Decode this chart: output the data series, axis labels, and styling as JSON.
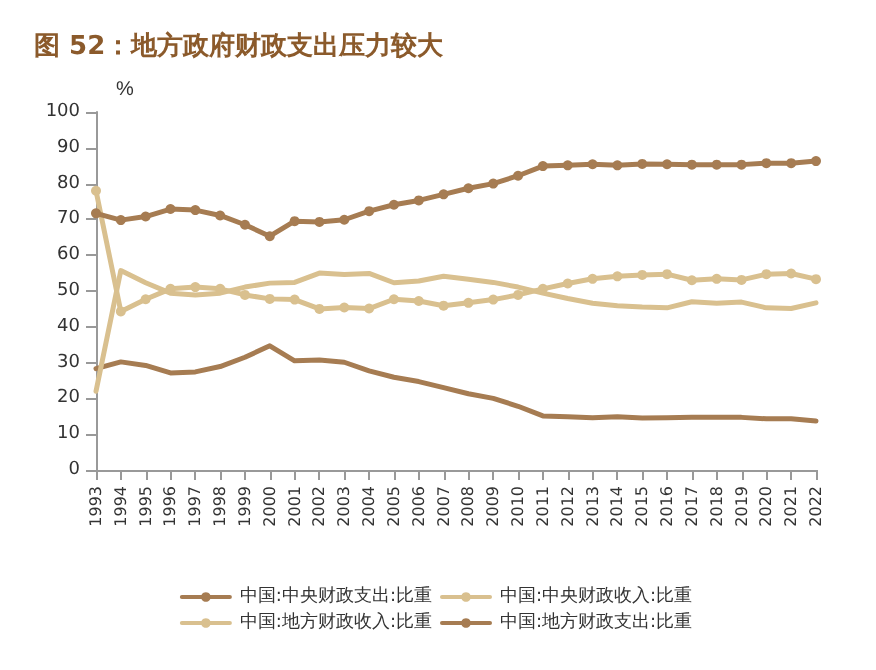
{
  "chart_data": {
    "type": "line",
    "title": "图 52：地方政府财政支出压力较大",
    "ylabel": "%",
    "categories": [
      "1993",
      "1994",
      "1995",
      "1996",
      "1997",
      "1998",
      "1999",
      "2000",
      "2001",
      "2002",
      "2003",
      "2004",
      "2005",
      "2006",
      "2007",
      "2008",
      "2009",
      "2010",
      "2011",
      "2012",
      "2013",
      "2014",
      "2015",
      "2016",
      "2017",
      "2018",
      "2019",
      "2020",
      "2021",
      "2022"
    ],
    "ylim": [
      0,
      100
    ],
    "yticks": [
      0,
      10,
      20,
      30,
      40,
      50,
      60,
      70,
      80,
      90,
      100
    ],
    "grid": false,
    "legend": "bottom",
    "series": [
      {
        "name": "中国:中央财政支出:比重",
        "color": "#a67c52",
        "marker": "none",
        "values": [
          28.3,
          30.2,
          29.2,
          27.1,
          27.4,
          28.9,
          31.5,
          34.7,
          30.5,
          30.7,
          30.1,
          27.7,
          25.9,
          24.7,
          23.0,
          21.3,
          20.0,
          17.8,
          15.1,
          14.9,
          14.6,
          14.9,
          14.5,
          14.6,
          14.7,
          14.7,
          14.7,
          14.3,
          14.3,
          13.7
        ]
      },
      {
        "name": "中国:中央财政收入:比重",
        "color": "#d9c08f",
        "marker": "none",
        "values": [
          22.0,
          55.7,
          52.3,
          49.4,
          48.9,
          49.4,
          51.1,
          52.2,
          52.4,
          55.0,
          54.6,
          54.9,
          52.3,
          52.8,
          54.1,
          53.3,
          52.4,
          51.1,
          49.4,
          47.9,
          46.6,
          45.9,
          45.5,
          45.3,
          47.0,
          46.6,
          46.9,
          45.3,
          45.1,
          46.7
        ]
      },
      {
        "name": "中国:地方财政收入:比重",
        "color": "#d9c08f",
        "marker": "circle",
        "values": [
          78.0,
          44.3,
          47.7,
          50.6,
          51.1,
          50.6,
          48.9,
          47.8,
          47.6,
          45.0,
          45.4,
          45.1,
          47.7,
          47.2,
          45.9,
          46.7,
          47.6,
          48.9,
          50.6,
          52.1,
          53.4,
          54.1,
          54.5,
          54.7,
          53.0,
          53.4,
          53.1,
          54.7,
          54.9,
          53.3
        ]
      },
      {
        "name": "中国:地方财政支出:比重",
        "color": "#a67c52",
        "marker": "circle",
        "values": [
          71.7,
          69.8,
          70.8,
          72.9,
          72.6,
          71.1,
          68.5,
          65.3,
          69.5,
          69.3,
          69.9,
          72.3,
          74.1,
          75.3,
          77.0,
          78.7,
          80.0,
          82.2,
          84.9,
          85.1,
          85.4,
          85.1,
          85.5,
          85.4,
          85.3,
          85.3,
          85.3,
          85.7,
          85.7,
          86.3
        ]
      }
    ]
  }
}
